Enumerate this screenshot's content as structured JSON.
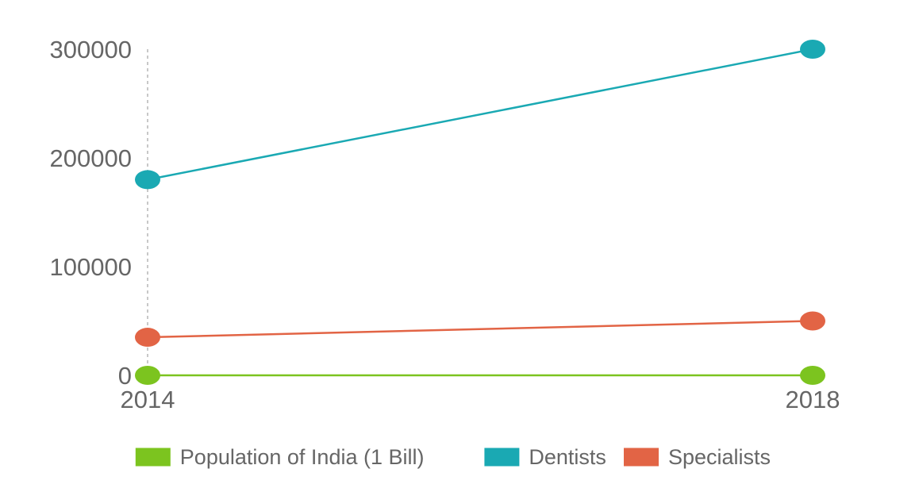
{
  "chart_data": {
    "type": "line",
    "title": "",
    "xlabel": "",
    "ylabel": "",
    "categories": [
      "2014",
      "2018"
    ],
    "ylim": [
      0,
      300000
    ],
    "yticks": [
      "0",
      "100000",
      "200000",
      "300000"
    ],
    "grid": false,
    "legend_position": "bottom",
    "series": [
      {
        "name": "Population of India (1 Bill)",
        "color": "#7cc41f",
        "values": [
          0,
          0
        ]
      },
      {
        "name": "Dentists",
        "color": "#1aa9b3",
        "values": [
          180000,
          300000
        ]
      },
      {
        "name": "Specialists",
        "color": "#e26445",
        "values": [
          35000,
          50000
        ]
      }
    ]
  }
}
